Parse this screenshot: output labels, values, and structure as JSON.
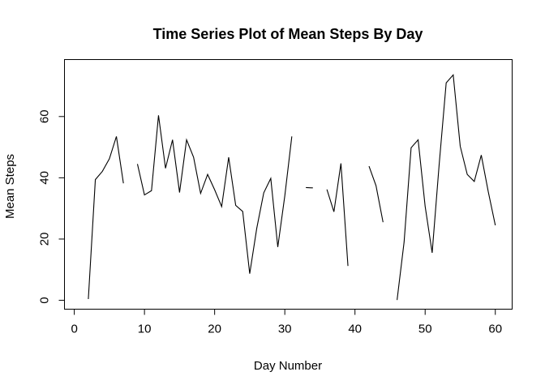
{
  "chart_data": {
    "type": "line",
    "title": "Time Series Plot of Mean Steps By Day",
    "xlabel": "Day Number",
    "ylabel": "Mean Steps",
    "xlim": [
      -1.4,
      62.4
    ],
    "ylim": [
      -2.9,
      78.6
    ],
    "xticks": [
      0,
      10,
      20,
      30,
      40,
      50,
      60
    ],
    "yticks": [
      0,
      20,
      40,
      60
    ],
    "grid": false,
    "legend": "none",
    "series": [
      {
        "values": [
          {
            "x": 2,
            "y": 0.4
          },
          {
            "x": 3,
            "y": 39.4
          },
          {
            "x": 4,
            "y": 42.1
          },
          {
            "x": 5,
            "y": 46.2
          },
          {
            "x": 6,
            "y": 53.5
          },
          {
            "x": 7,
            "y": 38.2
          },
          {
            "x": 8,
            "y": null
          },
          {
            "x": 9,
            "y": 44.5
          },
          {
            "x": 10,
            "y": 34.4
          },
          {
            "x": 11,
            "y": 35.8
          },
          {
            "x": 12,
            "y": 60.4
          },
          {
            "x": 13,
            "y": 43.1
          },
          {
            "x": 14,
            "y": 52.4
          },
          {
            "x": 15,
            "y": 35.2
          },
          {
            "x": 16,
            "y": 52.4
          },
          {
            "x": 17,
            "y": 46.7
          },
          {
            "x": 18,
            "y": 34.9
          },
          {
            "x": 19,
            "y": 41.1
          },
          {
            "x": 20,
            "y": 36.1
          },
          {
            "x": 21,
            "y": 30.6
          },
          {
            "x": 22,
            "y": 46.7
          },
          {
            "x": 23,
            "y": 31.0
          },
          {
            "x": 24,
            "y": 29.0
          },
          {
            "x": 25,
            "y": 8.7
          },
          {
            "x": 26,
            "y": 23.5
          },
          {
            "x": 27,
            "y": 35.1
          },
          {
            "x": 28,
            "y": 39.8
          },
          {
            "x": 29,
            "y": 17.4
          },
          {
            "x": 30,
            "y": 34.1
          },
          {
            "x": 31,
            "y": 53.5
          },
          {
            "x": 32,
            "y": null
          },
          {
            "x": 33,
            "y": 36.8
          },
          {
            "x": 34,
            "y": 36.7
          },
          {
            "x": 35,
            "y": null
          },
          {
            "x": 36,
            "y": 36.2
          },
          {
            "x": 37,
            "y": 28.9
          },
          {
            "x": 38,
            "y": 44.7
          },
          {
            "x": 39,
            "y": 11.2
          },
          {
            "x": 40,
            "y": null
          },
          {
            "x": 41,
            "y": null
          },
          {
            "x": 42,
            "y": 43.8
          },
          {
            "x": 43,
            "y": 37.4
          },
          {
            "x": 44,
            "y": 25.5
          },
          {
            "x": 45,
            "y": null
          },
          {
            "x": 46,
            "y": 0.1
          },
          {
            "x": 47,
            "y": 19.0
          },
          {
            "x": 48,
            "y": 49.8
          },
          {
            "x": 49,
            "y": 52.4
          },
          {
            "x": 50,
            "y": 30.7
          },
          {
            "x": 51,
            "y": 15.5
          },
          {
            "x": 52,
            "y": 44.4
          },
          {
            "x": 53,
            "y": 71.0
          },
          {
            "x": 54,
            "y": 73.6
          },
          {
            "x": 55,
            "y": 50.3
          },
          {
            "x": 56,
            "y": 41.1
          },
          {
            "x": 57,
            "y": 38.8
          },
          {
            "x": 58,
            "y": 47.4
          },
          {
            "x": 59,
            "y": 35.4
          },
          {
            "x": 60,
            "y": 24.5
          }
        ]
      }
    ]
  }
}
